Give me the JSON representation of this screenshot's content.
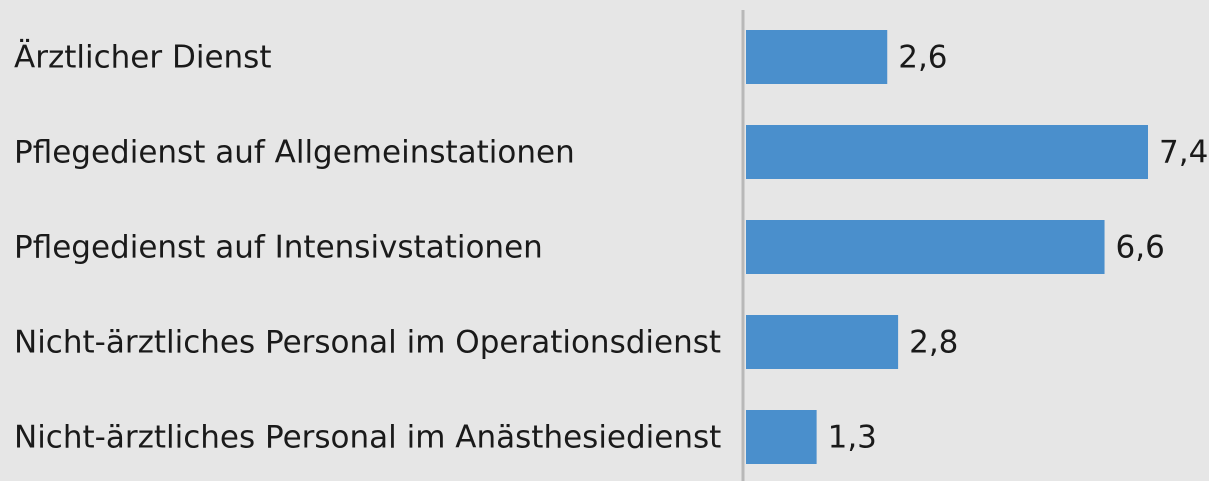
{
  "chart_data": {
    "type": "bar",
    "categories": [
      "Ärztlicher Dienst",
      "Pflegedienst auf Allgemeinstationen",
      "Pflegedienst auf Intensivstationen",
      "Nicht-ärztliches Personal im Operationsdienst",
      "Nicht-ärztliches Personal im Anästhesiedienst"
    ],
    "values": [
      2.6,
      7.4,
      6.6,
      2.8,
      1.3
    ],
    "value_labels": [
      "2,6",
      "7,4",
      "6,6",
      "2,8",
      "1,3"
    ],
    "color": "#4a8fcc"
  }
}
